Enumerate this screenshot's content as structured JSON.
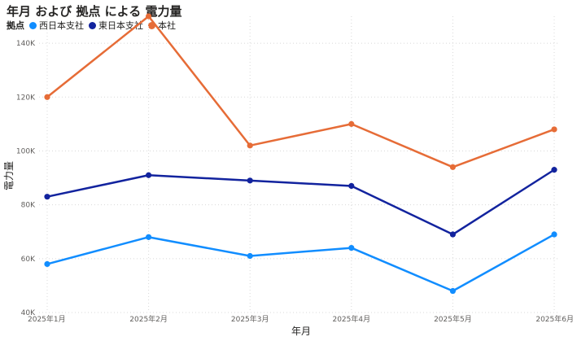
{
  "chart_data": {
    "type": "line",
    "title": "年月 および 拠点 による 電力量",
    "legend_title": "拠点",
    "legend_position": "top-left",
    "xlabel": "年月",
    "ylabel": "電力量",
    "categories": [
      "2025年1月",
      "2025年2月",
      "2025年3月",
      "2025年4月",
      "2025年5月",
      "2025年6月"
    ],
    "ylim": [
      40000,
      150000
    ],
    "yticks": [
      {
        "value": 40000,
        "label": "40K"
      },
      {
        "value": 60000,
        "label": "60K"
      },
      {
        "value": 80000,
        "label": "80K"
      },
      {
        "value": 100000,
        "label": "100K"
      },
      {
        "value": 120000,
        "label": "120K"
      },
      {
        "value": 140000,
        "label": "140K"
      }
    ],
    "grid": true,
    "series": [
      {
        "name": "西日本支社",
        "color": "#118DFF",
        "values": [
          58000,
          68000,
          61000,
          64000,
          48000,
          69000
        ]
      },
      {
        "name": "東日本支社",
        "color": "#12239E",
        "values": [
          83000,
          91000,
          89000,
          87000,
          69000,
          93000
        ]
      },
      {
        "name": "本社",
        "color": "#E66C37",
        "values": [
          120000,
          150000,
          102000,
          110000,
          94000,
          108000
        ]
      }
    ]
  }
}
